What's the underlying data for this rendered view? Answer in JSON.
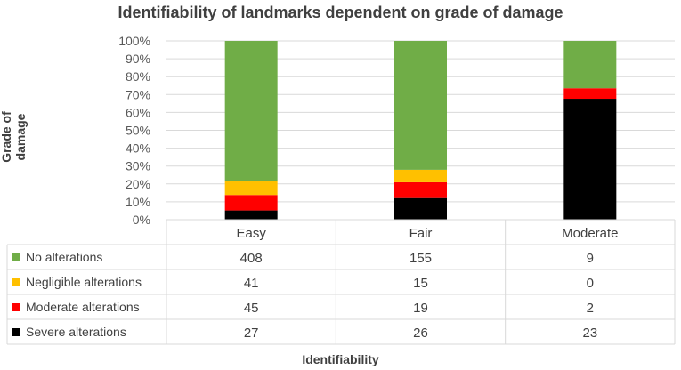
{
  "chart_data": {
    "type": "bar",
    "stacked": true,
    "normalized": true,
    "title": "Identifiability of landmarks dependent on grade of damage",
    "xlabel": "Identifiability",
    "ylabel": "Grade of damage",
    "ylim": [
      0,
      100
    ],
    "yticks": [
      "0%",
      "10%",
      "20%",
      "30%",
      "40%",
      "50%",
      "60%",
      "70%",
      "80%",
      "90%",
      "100%"
    ],
    "grid": true,
    "legend_placement": "data-table-left",
    "categories": [
      "Easy",
      "Fair",
      "Moderate"
    ],
    "series": [
      {
        "name": "Severe alterations",
        "color": "#000000",
        "values": [
          27,
          26,
          23
        ]
      },
      {
        "name": "Moderate alterations",
        "color": "#ff0000",
        "values": [
          45,
          19,
          2
        ]
      },
      {
        "name": "Negligible alterations",
        "color": "#ffc000",
        "values": [
          41,
          15,
          0
        ]
      },
      {
        "name": "No alterations",
        "color": "#70ad47",
        "values": [
          408,
          155,
          9
        ]
      }
    ],
    "table_order": [
      "No alterations",
      "Negligible alterations",
      "Moderate alterations",
      "Severe alterations"
    ]
  }
}
